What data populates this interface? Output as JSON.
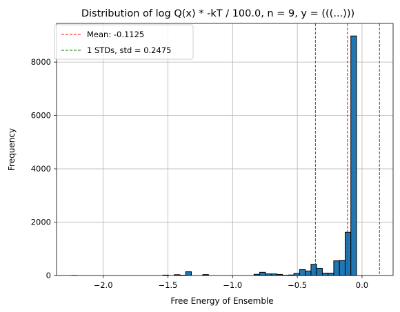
{
  "chart_data": {
    "type": "bar",
    "title": "Distribution of log Q(x) * -kT / 100.0, n = 9, y = (((...)))",
    "xlabel": "Free Energy of Ensemble",
    "ylabel": "Frequency",
    "xlim": [
      -2.36,
      0.24
    ],
    "ylim": [
      0,
      9450
    ],
    "xticks": [
      -2.0,
      -1.5,
      -1.0,
      -0.5,
      0.0
    ],
    "xtick_labels": [
      "−2.0",
      "−1.5",
      "−1.0",
      "−0.5",
      "0.0"
    ],
    "yticks": [
      0,
      2000,
      4000,
      6000,
      8000
    ],
    "ytick_labels": [
      "0",
      "2000",
      "4000",
      "6000",
      "8000"
    ],
    "grid": true,
    "legend_position": "upper-left",
    "bins": {
      "start": -2.2425,
      "width": 0.044,
      "counts": [
        2,
        0,
        0,
        0,
        0,
        0,
        0,
        0,
        0,
        0,
        0,
        0,
        0,
        0,
        0,
        0,
        15,
        0,
        30,
        10,
        140,
        0,
        0,
        35,
        0,
        0,
        0,
        0,
        0,
        0,
        0,
        0,
        45,
        120,
        60,
        60,
        40,
        10,
        20,
        80,
        220,
        170,
        420,
        270,
        90,
        90,
        550,
        560,
        1620,
        8980
      ]
    },
    "bar_color": "#1f77b4",
    "bar_edge_color": "#000000",
    "vlines": [
      {
        "x": -0.1125,
        "color": "#ff0000",
        "label": "Mean: -0.1125"
      },
      {
        "x": -0.36,
        "color": "#008000",
        "label": "1 STDs, std = 0.2475"
      },
      {
        "x": 0.135,
        "color": "#008000",
        "label": ""
      }
    ]
  }
}
